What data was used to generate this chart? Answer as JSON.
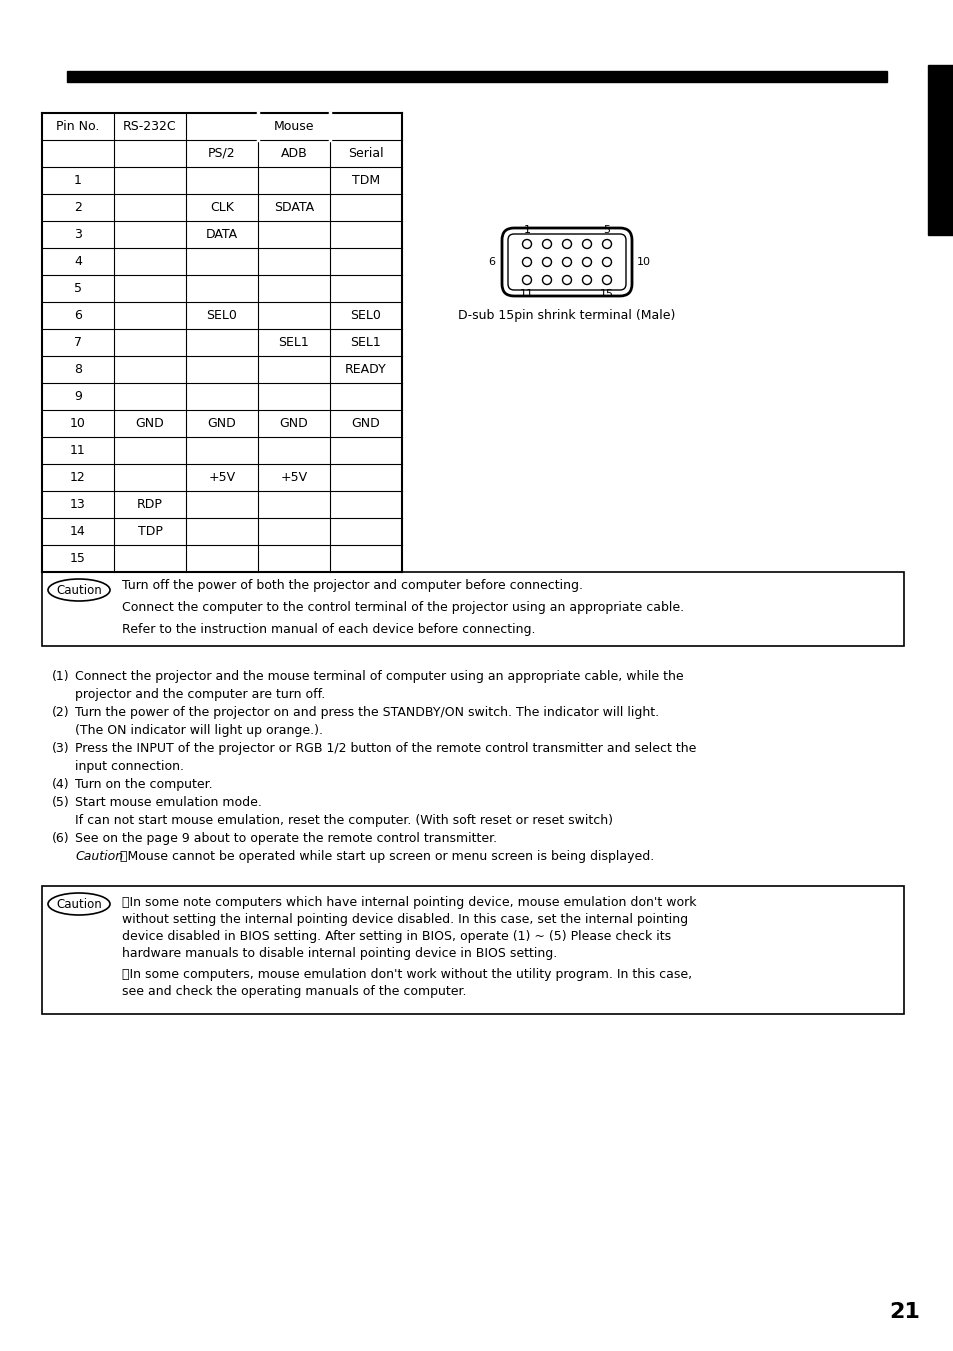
{
  "page_number": "21",
  "top_bar_color": "#000000",
  "right_bar_color": "#000000",
  "table_rows": [
    [
      "1",
      "",
      "",
      "",
      "TDM"
    ],
    [
      "2",
      "",
      "CLK",
      "SDATA",
      ""
    ],
    [
      "3",
      "",
      "DATA",
      "",
      ""
    ],
    [
      "4",
      "",
      "",
      "",
      ""
    ],
    [
      "5",
      "",
      "",
      "",
      ""
    ],
    [
      "6",
      "",
      "SEL0",
      "",
      "SEL0"
    ],
    [
      "7",
      "",
      "",
      "SEL1",
      "SEL1"
    ],
    [
      "8",
      "",
      "",
      "",
      "READY"
    ],
    [
      "9",
      "",
      "",
      "",
      ""
    ],
    [
      "10",
      "GND",
      "GND",
      "GND",
      "GND"
    ],
    [
      "11",
      "",
      "",
      "",
      ""
    ],
    [
      "12",
      "",
      "+5V",
      "+5V",
      ""
    ],
    [
      "13",
      "RDP",
      "",
      "",
      ""
    ],
    [
      "14",
      "TDP",
      "",
      "",
      ""
    ],
    [
      "15",
      "",
      "",
      "",
      ""
    ]
  ],
  "connector_label": "D-sub 15pin shrink terminal (Male)",
  "caution1_lines": [
    "Turn off the power of both the projector and computer before connecting.",
    "Connect the computer to the control terminal of the projector using an appropriate cable.",
    "Refer to the instruction manual of each device before connecting."
  ],
  "body_lines": [
    [
      "(1)",
      "Connect the projector and the mouse terminal of computer using an appropriate cable, while the"
    ],
    [
      "",
      "projector and the computer are turn off."
    ],
    [
      "(2)",
      "Turn the power of the projector on and press the STANDBY/ON switch. The indicator will light."
    ],
    [
      "",
      "(The ON indicator will light up orange.)."
    ],
    [
      "(3)",
      "Press the INPUT of the projector or RGB 1/2 button of the remote control transmitter and select the"
    ],
    [
      "",
      "input connection."
    ],
    [
      "(4)",
      "Turn on the computer."
    ],
    [
      "(5)",
      "Start mouse emulation mode."
    ],
    [
      "",
      "If can not start mouse emulation, reset the computer. (With soft reset or reset switch)"
    ],
    [
      "(6)",
      "See on the page 9 about to operate the remote control transmitter."
    ],
    [
      "",
      "caution_special"
    ]
  ],
  "caution_special_text": "Mouse cannot be operated while start up screen or menu screen is being displayed.",
  "caution2_para1_lines": [
    "・In some note computers which have internal pointing device, mouse emulation don't work",
    "without setting the internal pointing device disabled. In this case, set the internal pointing",
    "device disabled in BIOS setting. After setting in BIOS, operate (1) ~ (5) Please check its",
    "hardware manuals to disable internal pointing device in BIOS setting."
  ],
  "caution2_para2_lines": [
    "・In some computers, mouse emulation don't work without the utility program. In this case,",
    "see and check the operating manuals of the computer."
  ]
}
